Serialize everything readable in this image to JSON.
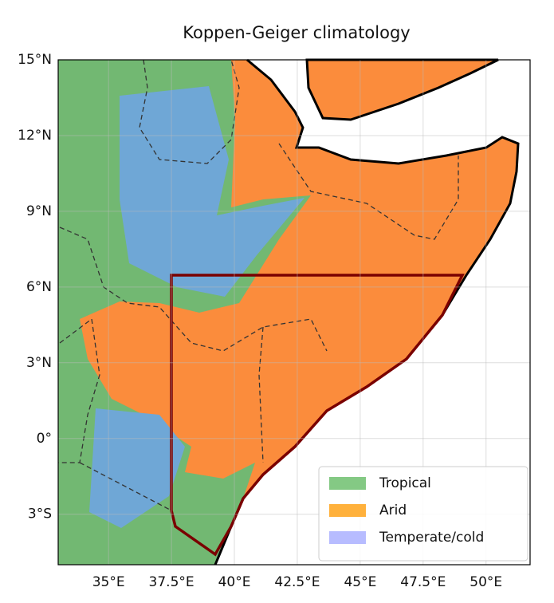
{
  "chart_data": {
    "type": "map",
    "title": "Koppen-Geiger climatology",
    "xlim": [
      33,
      51.75
    ],
    "ylim": [
      -5,
      15
    ],
    "xticks": [
      {
        "value": 35,
        "label": "35°E"
      },
      {
        "value": 37.5,
        "label": "37.5°E"
      },
      {
        "value": 40,
        "label": "40°E"
      },
      {
        "value": 42.5,
        "label": "42.5°E"
      },
      {
        "value": 45,
        "label": "45°E"
      },
      {
        "value": 47.5,
        "label": "47.5°E"
      },
      {
        "value": 50,
        "label": "50°E"
      }
    ],
    "yticks": [
      {
        "value": -3,
        "label": "3°S"
      },
      {
        "value": 0,
        "label": "0°"
      },
      {
        "value": 3,
        "label": "3°N"
      },
      {
        "value": 6,
        "label": "6°N"
      },
      {
        "value": 9,
        "label": "9°N"
      },
      {
        "value": 12,
        "label": "12°N"
      },
      {
        "value": 15,
        "label": "15°N"
      }
    ],
    "grid": true,
    "legend": [
      {
        "label": "Tropical",
        "color": "#6fbf6f"
      },
      {
        "label": "Arid",
        "color": "#ffa31a"
      },
      {
        "label": "Temperate/cold",
        "color": "#aab0ff"
      }
    ]
  }
}
